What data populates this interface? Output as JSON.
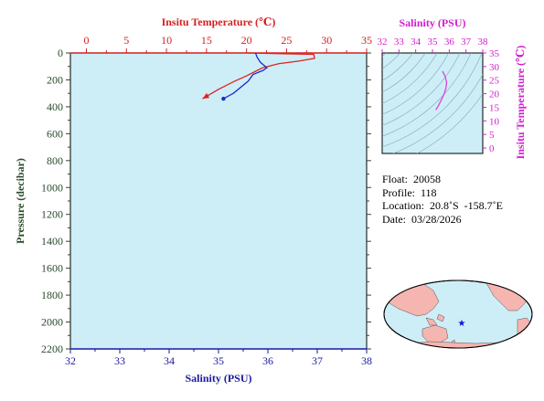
{
  "chart_data": [
    {
      "type": "line",
      "top_axis": {
        "label": "Insitu Temperature (℃)",
        "ticks": [
          0,
          5,
          10,
          15,
          20,
          25,
          30,
          35
        ],
        "range": [
          -2,
          35
        ],
        "color": "#d42020"
      },
      "bottom_axis": {
        "label": "Salinity (PSU)",
        "ticks": [
          32,
          33,
          34,
          35,
          36,
          37,
          38
        ],
        "range": [
          32,
          38
        ],
        "color": "#1a1aa0"
      },
      "left_axis": {
        "label": "Pressure (decibar)",
        "ticks": [
          0,
          200,
          400,
          600,
          800,
          1000,
          1200,
          1400,
          1600,
          1800,
          2000,
          2200
        ],
        "range": [
          0,
          2200
        ],
        "reversed": true,
        "color": "#2a4a2a"
      },
      "grid": false,
      "background": "#cdeef7",
      "series": [
        {
          "color": "#e02020",
          "axis": "temperature",
          "end_marker": "arrow",
          "points": [
            [
              20.2,
              0
            ],
            [
              24.0,
              5
            ],
            [
              28.4,
              10
            ],
            [
              28.5,
              40
            ],
            [
              26.5,
              60
            ],
            [
              24.0,
              80
            ],
            [
              22.0,
              110
            ],
            [
              21.0,
              140
            ],
            [
              20.0,
              170
            ],
            [
              18.5,
              210
            ],
            [
              16.5,
              270
            ],
            [
              14.5,
              340
            ]
          ]
        },
        {
          "color": "#1a2ed0",
          "axis": "salinity",
          "end_marker": "dot",
          "points": [
            [
              35.75,
              0
            ],
            [
              35.78,
              30
            ],
            [
              35.85,
              70
            ],
            [
              35.98,
              110
            ],
            [
              35.9,
              130
            ],
            [
              35.7,
              160
            ],
            [
              35.6,
              210
            ],
            [
              35.3,
              300
            ],
            [
              35.1,
              340
            ]
          ]
        }
      ]
    },
    {
      "type": "line",
      "top_axis": {
        "label": "Salinity (PSU)",
        "ticks": [
          32,
          33,
          34,
          35,
          36,
          37,
          38
        ],
        "range": [
          32,
          38
        ],
        "color": "#d020d0"
      },
      "right_axis": {
        "label": "Insitu Temperature (℃)",
        "ticks": [
          0,
          5,
          10,
          15,
          20,
          25,
          30,
          35
        ],
        "range": [
          -2,
          35
        ],
        "color": "#d020d0"
      },
      "grid": false,
      "background": "#cdeef7",
      "background_lines": "density contours",
      "series": [
        {
          "color": "#e040e0",
          "points": [
            [
              35.6,
              28.3
            ],
            [
              35.75,
              26.5
            ],
            [
              35.85,
              24.0
            ],
            [
              35.8,
              22.0
            ],
            [
              35.7,
              20.0
            ],
            [
              35.55,
              18.0
            ],
            [
              35.35,
              15.5
            ],
            [
              35.2,
              14.0
            ]
          ]
        }
      ]
    },
    {
      "type": "map",
      "projection": "world",
      "marker": {
        "shape": "star",
        "color": "#1010e0"
      },
      "background": "#cdeef7",
      "land_color": "#f5b5b0"
    }
  ],
  "info": {
    "float": "Float:  20058",
    "profile": "Profile:  118",
    "location": "Location:  20.8˚S  -158.7˚E",
    "date": "Date:  03/28/2026"
  }
}
